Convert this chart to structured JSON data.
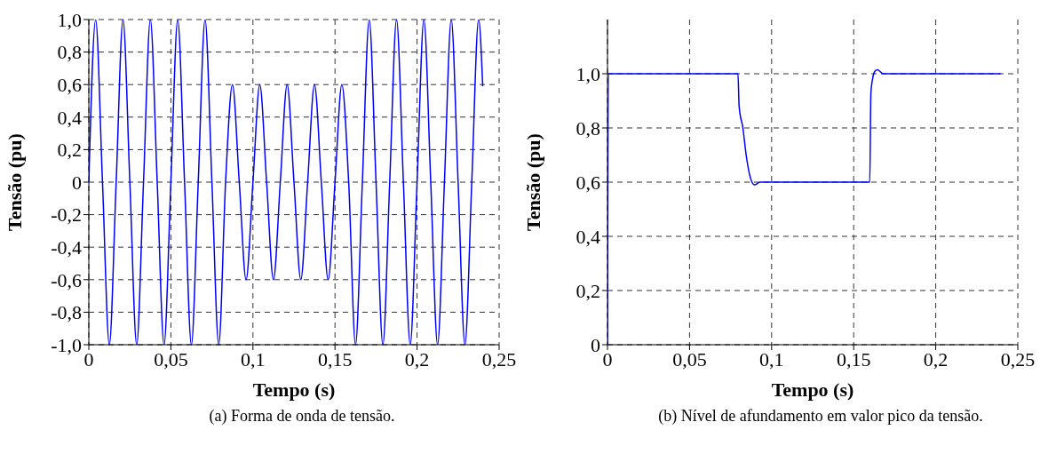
{
  "chart_data": [
    {
      "type": "line",
      "xlabel": "Tempo (s)",
      "ylabel": "Tensão (pu)",
      "annotations": [
        "(a) Forma de onda de tensão."
      ],
      "x": [
        0,
        0.00417,
        0.00833,
        0.0125,
        0.01667,
        0.02083,
        0.025,
        0.02917,
        0.03333,
        0.0375,
        0.04167,
        0.04583,
        0.05,
        0.05417,
        0.05833,
        0.0625,
        0.06667,
        0.07083,
        0.075,
        0.07917,
        0.08333,
        0.0875,
        0.09167,
        0.09583,
        0.1,
        0.10417,
        0.10833,
        0.1125,
        0.11667,
        0.12083,
        0.125,
        0.12917,
        0.13333,
        0.1375,
        0.14167,
        0.14583,
        0.15,
        0.15417,
        0.15833,
        0.1625,
        0.16667,
        0.17083,
        0.175,
        0.17917,
        0.18333,
        0.1875,
        0.19167,
        0.19583,
        0.2,
        0.20417,
        0.20833,
        0.2125,
        0.21667,
        0.22083,
        0.225,
        0.22917,
        0.23333,
        0.2375,
        0.24
      ],
      "series": [
        {
          "color": "#0000ff",
          "values": [
            0,
            1,
            0,
            -1,
            0,
            1,
            0,
            -1,
            0,
            1,
            0,
            -1,
            0,
            1,
            0,
            -1,
            0,
            1,
            0,
            -1,
            0,
            0.6,
            0,
            -0.6,
            0,
            0.6,
            0,
            -0.6,
            0,
            0.6,
            0,
            -0.6,
            0,
            0.6,
            0,
            -0.6,
            0,
            0.6,
            0,
            -1,
            0,
            1,
            0,
            -1,
            0,
            1,
            0,
            -1,
            0,
            1,
            0,
            -1,
            0,
            1,
            0,
            -1,
            0,
            1,
            0.59
          ]
        }
      ],
      "xlim": [
        0,
        0.25
      ],
      "xticks": [
        0,
        {
          "value": 0.05,
          "label": "0,05"
        },
        {
          "value": 0.1,
          "label": "0,1"
        },
        {
          "value": 0.15,
          "label": "0,15"
        },
        {
          "value": 0.2,
          "label": "0,2"
        },
        {
          "value": 0.25,
          "label": "0,25"
        }
      ],
      "ylim": [
        -1,
        1
      ],
      "yticks": [
        {
          "value": -1,
          "label": "-1,0"
        },
        {
          "value": -0.8,
          "label": "-0,8"
        },
        {
          "value": -0.6,
          "label": "-0,6"
        },
        {
          "value": -0.4,
          "label": "-0,4"
        },
        {
          "value": -0.2,
          "label": "-0,2"
        },
        0,
        {
          "value": 0.2,
          "label": "0,2"
        },
        {
          "value": 0.4,
          "label": "0,4"
        },
        {
          "value": 0.6,
          "label": "0,6"
        },
        {
          "value": 0.8,
          "label": "0,8"
        },
        {
          "value": 1,
          "label": "1,0"
        }
      ],
      "grid": true,
      "legend": false
    },
    {
      "type": "line",
      "xlabel": "Tempo (s)",
      "ylabel": "Tensão (pu)",
      "annotations": [
        "(b) Nível de afundamento em valor pico da tensão."
      ],
      "x": [
        0,
        0.0005,
        0.04,
        0.0795,
        0.0802,
        0.0825,
        0.0845,
        0.0865,
        0.088,
        0.0895,
        0.093,
        0.12,
        0.1598,
        0.1605,
        0.1615,
        0.163,
        0.1645,
        0.168,
        0.2,
        0.2396
      ],
      "series": [
        {
          "color": "#0000ff",
          "values": [
            0,
            1,
            1,
            1,
            0.88,
            0.8,
            0.7,
            0.63,
            0.6,
            0.59,
            0.6,
            0.6,
            0.6,
            0.93,
            0.98,
            1.01,
            1.015,
            1,
            1,
            1
          ]
        }
      ],
      "xlim": [
        0,
        0.25
      ],
      "xticks": [
        0,
        {
          "value": 0.05,
          "label": "0,05"
        },
        {
          "value": 0.1,
          "label": "0,1"
        },
        {
          "value": 0.15,
          "label": "0,15"
        },
        {
          "value": 0.2,
          "label": "0,2"
        },
        {
          "value": 0.25,
          "label": "0,25"
        }
      ],
      "ylim": [
        0,
        1.2
      ],
      "yticks": [
        0,
        {
          "value": 0.2,
          "label": "0,2"
        },
        {
          "value": 0.4,
          "label": "0,4"
        },
        {
          "value": 0.6,
          "label": "0,6"
        },
        {
          "value": 0.8,
          "label": "0,8"
        },
        {
          "value": 1,
          "label": "1,0"
        }
      ],
      "grid": true,
      "legend": false
    }
  ]
}
